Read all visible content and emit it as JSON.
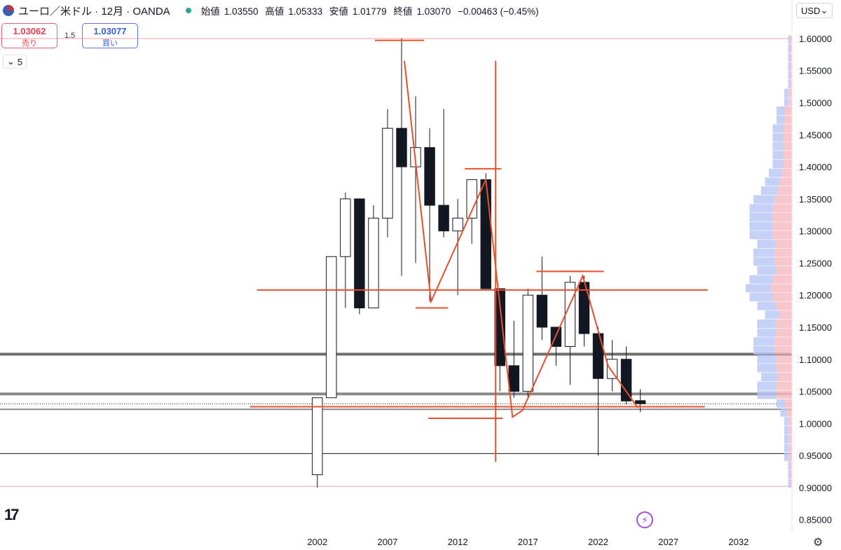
{
  "header": {
    "symbol": "ユーロ／米ドル · 12月 · OANDA",
    "open_label": "始値",
    "open": "1.03550",
    "high_label": "高値",
    "high": "1.05333",
    "low_label": "安値",
    "low": "1.01779",
    "close_label": "終値",
    "close": "1.03070",
    "change": "−0.00463 (−0.45%)",
    "currency": "USD",
    "currency_icon": "chevron-down-icon"
  },
  "trade": {
    "sell_price": "1.03062",
    "sell_label": "売り",
    "spread": "1.5",
    "buy_price": "1.03077",
    "buy_label": "買い"
  },
  "indicators_count": "5",
  "chart_data": {
    "type": "candlestick",
    "interval": "12M",
    "candles": [
      {
        "t": 2002,
        "o": 0.92,
        "h": 1.04,
        "l": 0.9,
        "c": 1.04
      },
      {
        "t": 2003,
        "o": 1.04,
        "h": 1.26,
        "l": 1.04,
        "c": 1.26
      },
      {
        "t": 2004,
        "o": 1.26,
        "h": 1.36,
        "l": 1.18,
        "c": 1.35
      },
      {
        "t": 2005,
        "o": 1.35,
        "h": 1.35,
        "l": 1.17,
        "c": 1.18
      },
      {
        "t": 2006,
        "o": 1.18,
        "h": 1.34,
        "l": 1.18,
        "c": 1.32
      },
      {
        "t": 2007,
        "o": 1.32,
        "h": 1.49,
        "l": 1.29,
        "c": 1.46
      },
      {
        "t": 2008,
        "o": 1.46,
        "h": 1.6,
        "l": 1.23,
        "c": 1.4
      },
      {
        "t": 2009,
        "o": 1.4,
        "h": 1.51,
        "l": 1.25,
        "c": 1.43
      },
      {
        "t": 2010,
        "o": 1.43,
        "h": 1.46,
        "l": 1.19,
        "c": 1.34
      },
      {
        "t": 2011,
        "o": 1.34,
        "h": 1.49,
        "l": 1.29,
        "c": 1.3
      },
      {
        "t": 2012,
        "o": 1.3,
        "h": 1.35,
        "l": 1.2,
        "c": 1.32
      },
      {
        "t": 2013,
        "o": 1.32,
        "h": 1.38,
        "l": 1.28,
        "c": 1.38
      },
      {
        "t": 2014,
        "o": 1.38,
        "h": 1.39,
        "l": 1.21,
        "c": 1.21
      },
      {
        "t": 2015,
        "o": 1.21,
        "h": 1.21,
        "l": 1.05,
        "c": 1.09
      },
      {
        "t": 2016,
        "o": 1.09,
        "h": 1.16,
        "l": 1.04,
        "c": 1.05
      },
      {
        "t": 2017,
        "o": 1.05,
        "h": 1.21,
        "l": 1.04,
        "c": 1.2
      },
      {
        "t": 2018,
        "o": 1.2,
        "h": 1.26,
        "l": 1.13,
        "c": 1.15
      },
      {
        "t": 2019,
        "o": 1.15,
        "h": 1.15,
        "l": 1.09,
        "c": 1.12
      },
      {
        "t": 2020,
        "o": 1.12,
        "h": 1.23,
        "l": 1.06,
        "c": 1.22
      },
      {
        "t": 2021,
        "o": 1.22,
        "h": 1.23,
        "l": 1.12,
        "c": 1.14
      },
      {
        "t": 2022,
        "o": 1.14,
        "h": 1.15,
        "l": 0.95,
        "c": 1.07
      },
      {
        "t": 2023,
        "o": 1.07,
        "h": 1.13,
        "l": 1.05,
        "c": 1.1
      },
      {
        "t": 2024,
        "o": 1.1,
        "h": 1.12,
        "l": 1.03,
        "c": 1.035
      },
      {
        "t": 2025,
        "o": 1.0355,
        "h": 1.05333,
        "l": 1.01779,
        "c": 1.0307
      }
    ],
    "y_ticks": [
      "1.60000",
      "1.55000",
      "1.50000",
      "1.45000",
      "1.40000",
      "1.35000",
      "1.30000",
      "1.25000",
      "1.20000",
      "1.15000",
      "1.10000",
      "1.05000",
      "1.00000",
      "0.95000",
      "0.90000",
      "0.85000"
    ],
    "x_ticks": [
      "2002",
      "2007",
      "2012",
      "2017",
      "2022",
      "2027",
      "2032"
    ],
    "x_tick_values": [
      2002,
      2007,
      2012,
      2017,
      2022,
      2027,
      2032
    ],
    "ylim": [
      0.83,
      1.66
    ],
    "xlim": [
      1979.4,
      2035.8
    ],
    "zigzag": [
      [
        2008.2,
        1.565
      ],
      [
        2010.1,
        1.19
      ],
      [
        2014.0,
        1.38
      ],
      [
        2015.9,
        1.01
      ],
      [
        2016.6,
        1.02
      ],
      [
        2020.9,
        1.23
      ],
      [
        2022.7,
        1.09
      ],
      [
        2024.8,
        1.025
      ],
      [
        2025.0,
        1.028
      ]
    ],
    "h_segments": [
      {
        "x1": 2006.1,
        "x2": 2009.6,
        "y": 1.597,
        "color": "#e8502c"
      },
      {
        "x1": 2012.5,
        "x2": 2015.1,
        "y": 1.397,
        "color": "#e8502c"
      },
      {
        "x1": 1997.7,
        "x2": 2029.8,
        "y": 1.208,
        "color": "#e8502c"
      },
      {
        "x1": 2009.0,
        "x2": 2011.3,
        "y": 1.18,
        "color": "#e8502c"
      },
      {
        "x1": 2019.2,
        "x2": 2020.9,
        "y": 1.237,
        "color": "#e8502c"
      },
      {
        "x1": 2017.6,
        "x2": 2022.4,
        "y": 1.237,
        "color": "#e8502c"
      },
      {
        "x1": 2009.9,
        "x2": 2015.2,
        "y": 1.008,
        "color": "#e8502c"
      },
      {
        "x1": 2013.1,
        "x2": 2012.6,
        "y": 1.008,
        "color": "#e8502c"
      },
      {
        "x1": 1997.2,
        "x2": 2029.6,
        "y": 1.026,
        "color": "#e8502c"
      }
    ],
    "v_segments": [
      {
        "x": 2014.7,
        "y1": 0.94,
        "y2": 1.565,
        "color": "#e8502c"
      }
    ],
    "h_lines": [
      {
        "y": 1.6,
        "color": "#f4a6a6",
        "width": 1
      },
      {
        "y": 1.108,
        "color": "#6e6e6e",
        "width": 4
      },
      {
        "y": 1.046,
        "color": "#8a8a8a",
        "width": 4
      },
      {
        "y": 1.022,
        "color": "#8a8a8a",
        "width": 2
      },
      {
        "y": 0.953,
        "color": "#131722",
        "width": 1
      },
      {
        "y": 0.902,
        "color": "#f4a6a6",
        "width": 1
      }
    ]
  }
}
